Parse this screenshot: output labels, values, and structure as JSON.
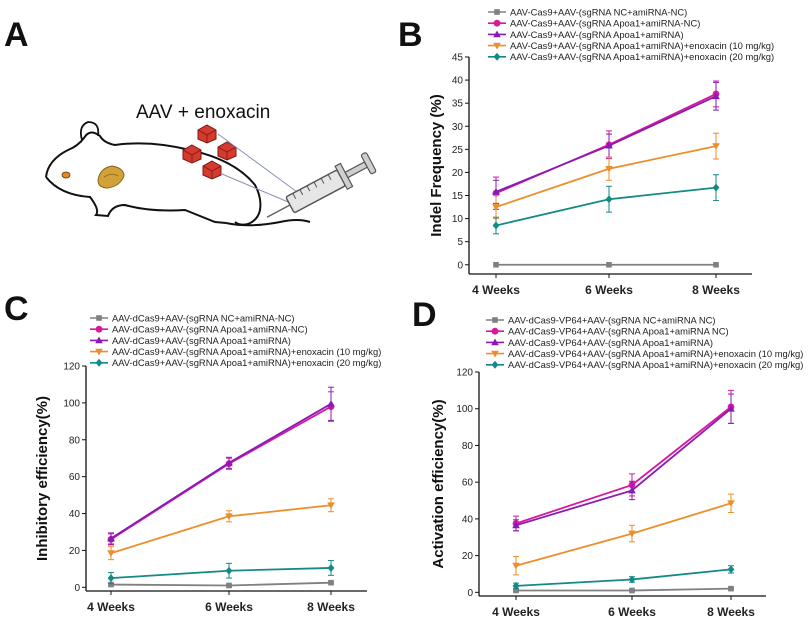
{
  "panel_labels": [
    "A",
    "B",
    "C",
    "D"
  ],
  "panel_a": {
    "annotation": "AAV + enoxacin"
  },
  "colors": {
    "gray": "#808080",
    "magenta": "#d7199c",
    "purple": "#8a1ab8",
    "orange": "#ec8e2a",
    "teal": "#138a85"
  },
  "chart_data": [
    {
      "id": "B",
      "type": "line",
      "title": "",
      "xlabel": "",
      "ylabel": "Indel Frequency (%)",
      "categories": [
        "4 Weeks",
        "6 Weeks",
        "8 Weeks"
      ],
      "ylim": [
        -2,
        45
      ],
      "yticks": [
        0,
        5,
        10,
        15,
        20,
        25,
        30,
        35,
        40,
        45
      ],
      "series": [
        {
          "name": "AAV-Cas9+AAV-(sgRNA NC+amiRNA-NC)",
          "color": "gray",
          "marker": "square",
          "values": [
            0,
            0,
            0
          ],
          "errors": [
            0,
            0,
            0
          ]
        },
        {
          "name": "AAV-Cas9+AAV-(sgRNA Apoa1+amiRNA-NC)",
          "color": "magenta",
          "marker": "circle",
          "values": [
            15.5,
            26,
            37
          ],
          "errors": [
            3.5,
            3,
            2.8
          ]
        },
        {
          "name": "AAV-Cas9+AAV-(sgRNA Apoa1+amiRNA)",
          "color": "purple",
          "marker": "triangle-up",
          "values": [
            15.8,
            25.8,
            36.5
          ],
          "errors": [
            2.5,
            2.5,
            3
          ]
        },
        {
          "name": "AAV-Cas9+AAV-(sgRNA Apoa1+amiRNA)+enoxacin (10 mg/kg)",
          "color": "orange",
          "marker": "triangle-down",
          "values": [
            12.5,
            20.8,
            25.7
          ],
          "errors": [
            2.5,
            2.5,
            2.8
          ]
        },
        {
          "name": "AAV-Cas9+AAV-(sgRNA Apoa1+amiRNA)+enoxacin (20 mg/kg)",
          "color": "teal",
          "marker": "diamond",
          "values": [
            8.5,
            14.2,
            16.7
          ],
          "errors": [
            1.8,
            2.8,
            2.8
          ]
        }
      ]
    },
    {
      "id": "C",
      "type": "line",
      "title": "",
      "xlabel": "",
      "ylabel": "Inhibitory efficiency(%)",
      "categories": [
        "4 Weeks",
        "6 Weeks",
        "8 Weeks"
      ],
      "ylim": [
        -2,
        120
      ],
      "yticks": [
        0,
        20,
        40,
        60,
        80,
        100,
        120
      ],
      "series": [
        {
          "name": "AAV-dCas9+AAV-(sgRNA NC+amiRNA-NC)",
          "color": "gray",
          "marker": "square",
          "values": [
            1.5,
            1,
            2.5
          ],
          "errors": [
            0.5,
            0.5,
            0.5
          ]
        },
        {
          "name": "AAV-dCas9+AAV-(sgRNA Apoa1+amiRNA-NC)",
          "color": "magenta",
          "marker": "circle",
          "values": [
            26,
            67,
            98
          ],
          "errors": [
            3,
            3,
            8
          ]
        },
        {
          "name": "AAV-dCas9+AAV-(sgRNA Apoa1+amiRNA)",
          "color": "purple",
          "marker": "triangle-up",
          "values": [
            26.5,
            67.5,
            99.5
          ],
          "errors": [
            3,
            3,
            9
          ]
        },
        {
          "name": "AAV-dCas9+AAV-(sgRNA Apoa1+amiRNA)+enoxacin (10 mg/kg)",
          "color": "orange",
          "marker": "triangle-down",
          "values": [
            18.5,
            38.5,
            44.5
          ],
          "errors": [
            3.5,
            3,
            3.5
          ]
        },
        {
          "name": "AAV-dCas9+AAV-(sgRNA Apoa1+amiRNA)+enoxacin (20 mg/kg)",
          "color": "teal",
          "marker": "diamond",
          "values": [
            5,
            9,
            10.5
          ],
          "errors": [
            3,
            4,
            4
          ]
        }
      ]
    },
    {
      "id": "D",
      "type": "line",
      "title": "",
      "xlabel": "",
      "ylabel": "Activation efficiency(%)",
      "categories": [
        "4 Weeks",
        "6 Weeks",
        "8 Weeks"
      ],
      "ylim": [
        -2,
        120
      ],
      "yticks": [
        0,
        20,
        40,
        60,
        80,
        100,
        120
      ],
      "series": [
        {
          "name": "AAV-dCas9-VP64+AAV-(sgRNA NC+amiRNA NC)",
          "color": "gray",
          "marker": "square",
          "values": [
            1,
            1,
            2
          ],
          "errors": [
            0.5,
            0.5,
            0.5
          ]
        },
        {
          "name": "AAV-dCas9-VP64+AAV-(sgRNA Apoa1+amiRNA NC)",
          "color": "magenta",
          "marker": "circle",
          "values": [
            37.5,
            58.5,
            101
          ],
          "errors": [
            4,
            6,
            9
          ]
        },
        {
          "name": "AAV-dCas9-VP64+AAV-(sgRNA Apoa1+amiRNA)",
          "color": "purple",
          "marker": "triangle-up",
          "values": [
            36.5,
            55.5,
            100
          ],
          "errors": [
            3,
            5,
            8
          ]
        },
        {
          "name": "AAV-dCas9-VP64+AAV-(sgRNA Apoa1+amiRNA)+enoxacin (10 mg/kg)",
          "color": "orange",
          "marker": "triangle-down",
          "values": [
            14.5,
            32,
            48.5
          ],
          "errors": [
            5,
            4.5,
            5
          ]
        },
        {
          "name": "AAV-dCas9-VP64+AAV-(sgRNA Apoa1+amiRNA)+enoxacin (20 mg/kg)",
          "color": "teal",
          "marker": "diamond",
          "values": [
            3.5,
            7,
            12.5
          ],
          "errors": [
            1.5,
            1.5,
            2
          ]
        }
      ]
    }
  ]
}
